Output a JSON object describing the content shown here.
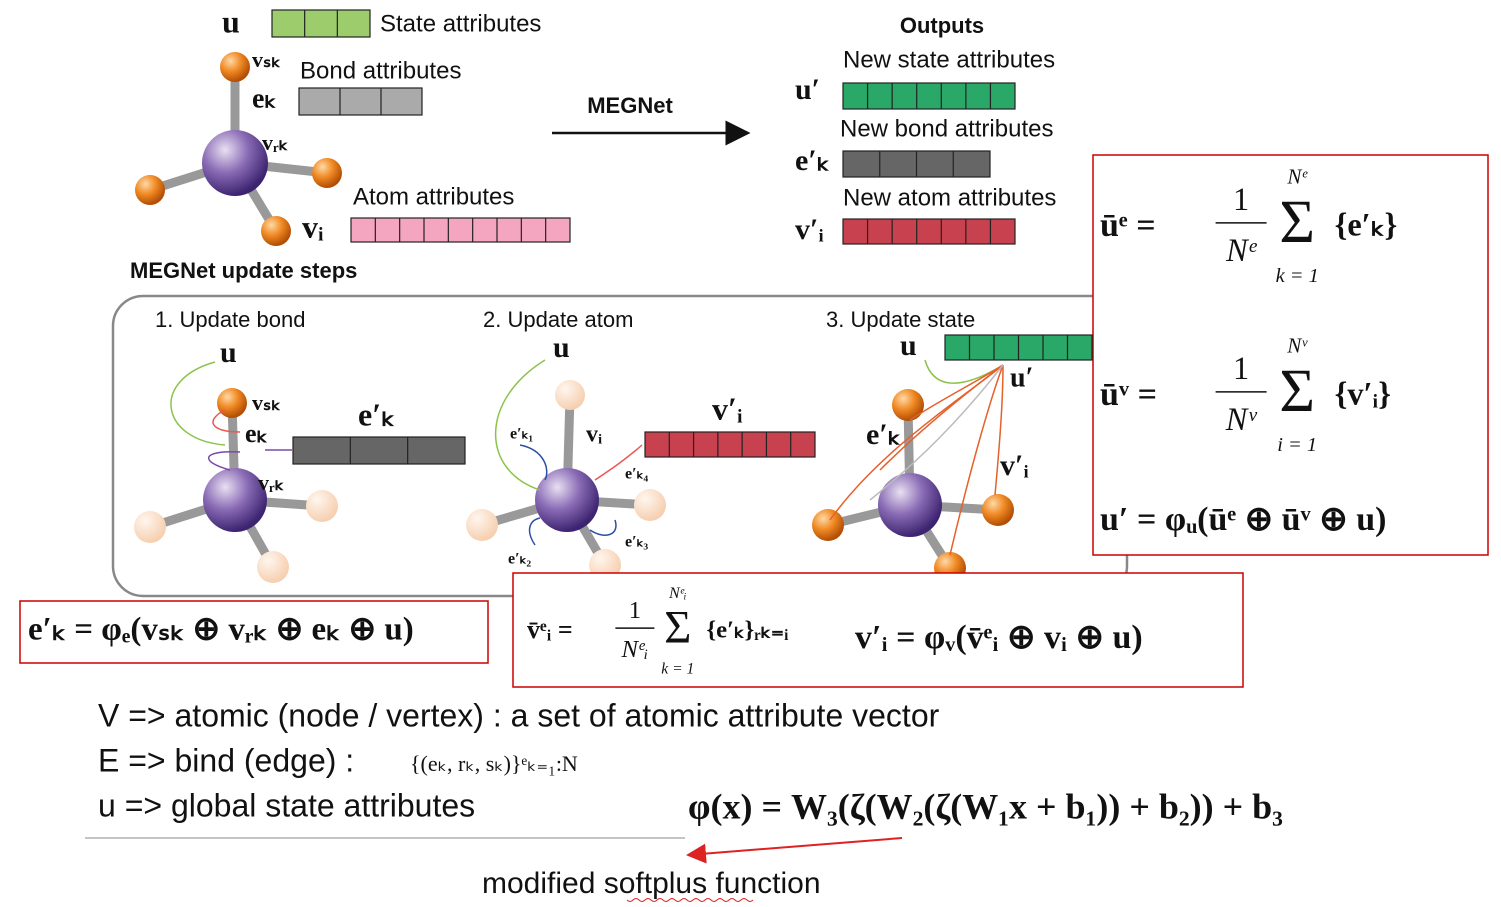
{
  "top": {
    "u": "u",
    "state": "State attributes",
    "vs": "vₛₖ",
    "bond": "Bond attributes",
    "ek": "eₖ",
    "vr": "vᵣₖ",
    "atom": "Atom attributes",
    "vi": "vᵢ",
    "arrow": "MEGNet"
  },
  "outputs": {
    "title": "Outputs",
    "state": "New state attributes",
    "u": "u′",
    "bond": "New bond attributes",
    "e": "e′ₖ",
    "atom": "New atom attributes",
    "v": "v′ᵢ"
  },
  "steps": {
    "title": "MEGNet update steps",
    "bond": {
      "label": "1. Update bond",
      "u": "u",
      "vs": "vₛₖ",
      "ek": "eₖ",
      "vr": "vᵣₖ",
      "out": "e′ₖ"
    },
    "atom": {
      "label": "2. Update atom",
      "u": "u",
      "vi": "vᵢ",
      "out": "v′ᵢ",
      "e1": "e′ₖ₁",
      "e4": "e′ₖ₄",
      "e3": "e′ₖ₃",
      "e2": "e′ₖ₂"
    },
    "state": {
      "label": "3. Update state",
      "u": "u",
      "out": "u′",
      "e": "e′ₖ",
      "v": "v′ᵢ"
    }
  },
  "formulas": {
    "ue": {
      "lhs": "ūᵉ =",
      "num": "1",
      "den": "Nᵉ",
      "top": "Nᵉ",
      "sum": "Σ",
      "bottom": "k = 1",
      "rhs": "{e′ₖ}"
    },
    "uv": {
      "lhs": "ūᵛ =",
      "num": "1",
      "den": "Nᵛ",
      "top": "Nᵛ",
      "sum": "Σ",
      "bottom": "i = 1",
      "rhs": "{v′ᵢ}"
    },
    "u": "u′ = φᵤ(ūᵉ ⊕ ūᵛ ⊕ u)",
    "e": "e′ₖ = φₑ(vₛₖ ⊕ vᵣₖ ⊕ eₖ ⊕ u)",
    "ve": {
      "lhs": "v̄ᵉᵢ =",
      "num": "1",
      "den": "Nᵉᵢ",
      "top": "Nᵉᵢ",
      "sum": "Σ",
      "bottom": "k = 1",
      "rhs": "{e′ₖ}ᵣₖ₌ᵢ"
    },
    "v": "v′ᵢ = φᵥ(v̄ᵉᵢ ⊕ vᵢ ⊕ u)",
    "phi": "φ(x) = W₃(ζ(W₂(ζ(W₁x + b₁)) + b₂)) + b₃"
  },
  "notes": {
    "v": "V => atomic (node / vertex) : a set of atomic attribute vector",
    "e": "E => bind (edge) :",
    "eset": "{(eₖ, rₖ, sₖ)}ᵉₖ₌₁:N",
    "u": "u => global state attributes",
    "softplus": "modified softplus function"
  }
}
